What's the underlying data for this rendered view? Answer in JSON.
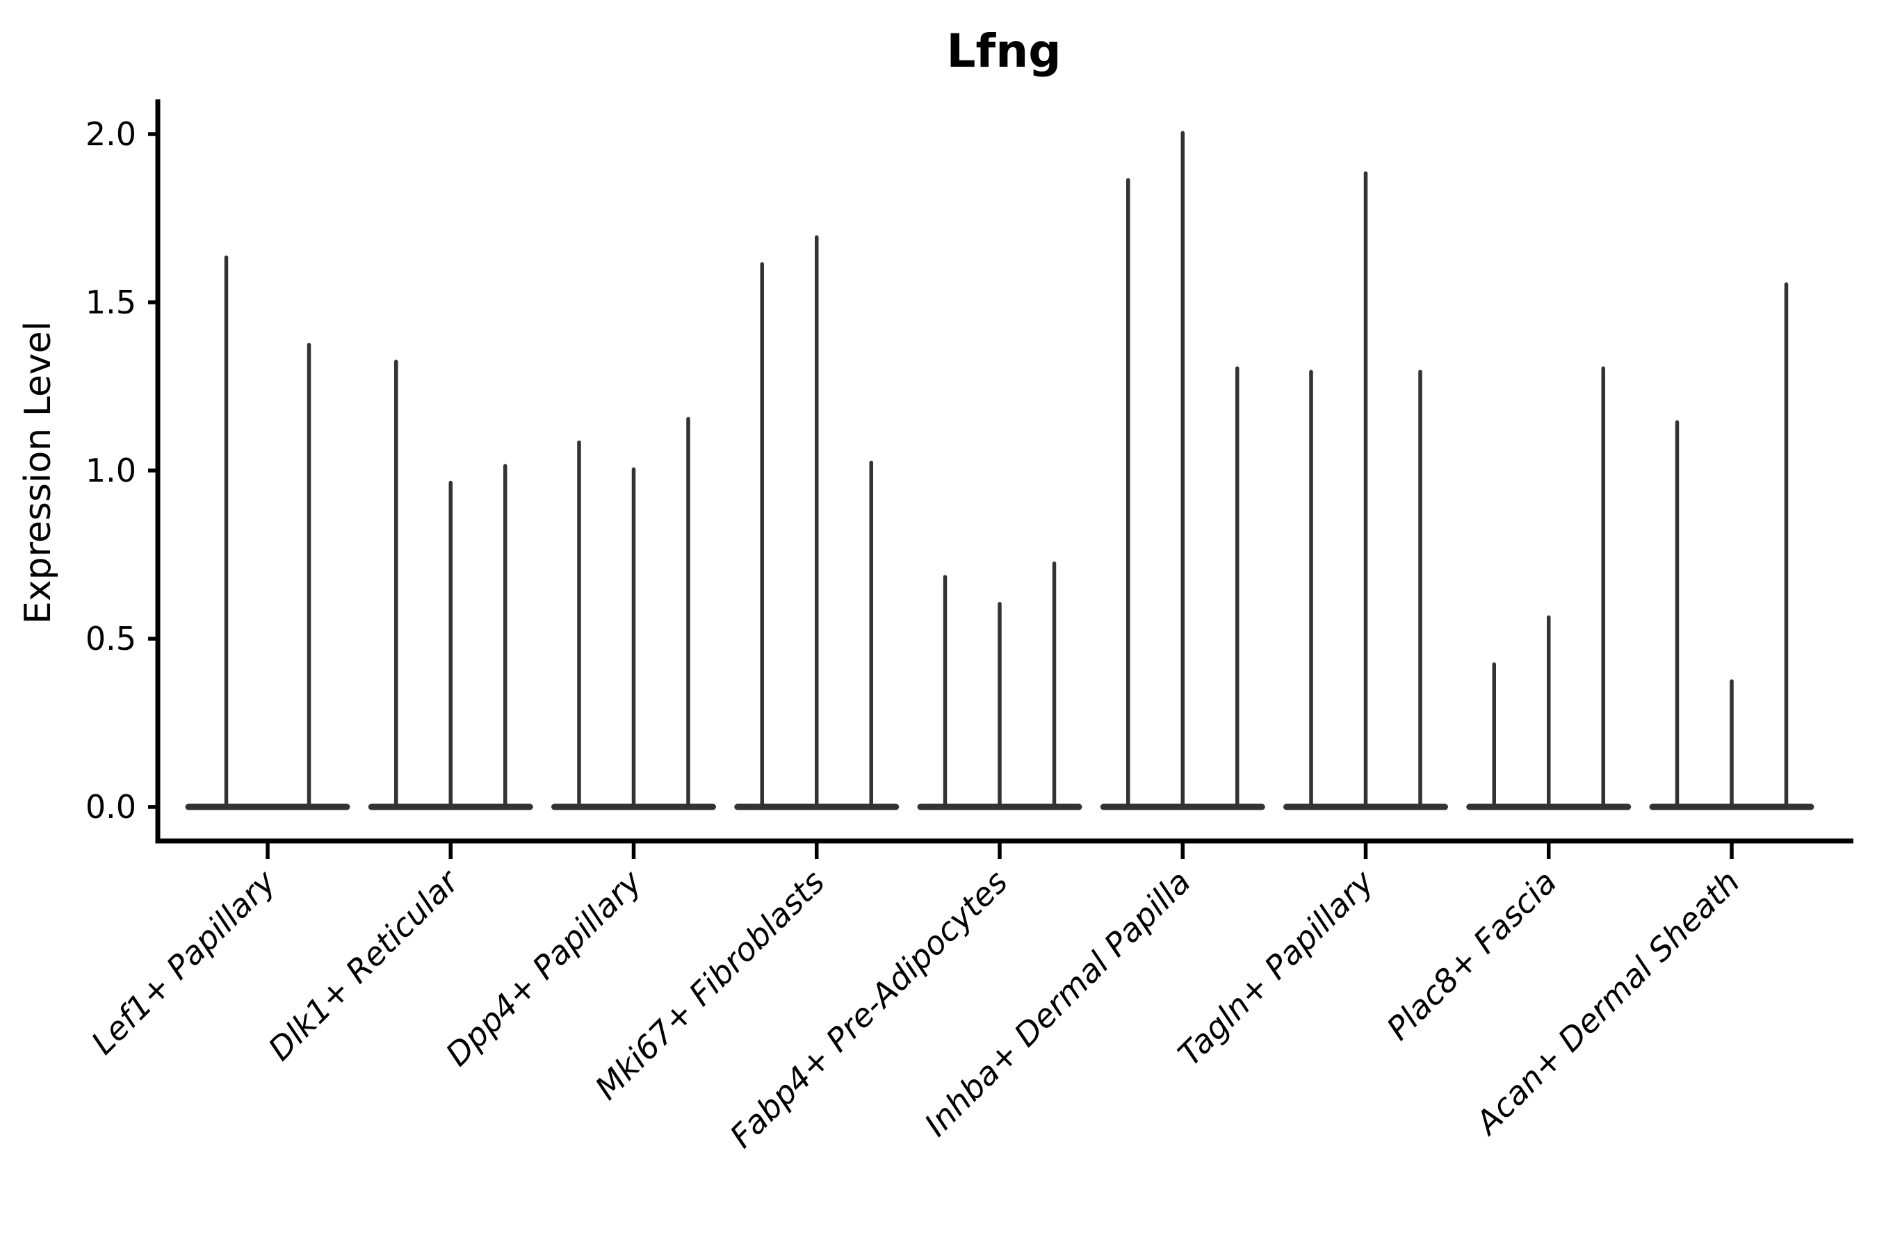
{
  "title": "Lfng",
  "ylabel": "Expression Level",
  "colors": {
    "background": "#ffffff",
    "axis": "#000000",
    "text": "#000000",
    "violin": "#333333"
  },
  "chart_data": {
    "type": "violin",
    "title": "Lfng",
    "xlabel": "",
    "ylabel": "Expression Level",
    "ylim": [
      0.0,
      2.05
    ],
    "yticks": [
      0.0,
      0.5,
      1.0,
      1.5,
      2.0
    ],
    "ytick_labels": [
      "0.0",
      "0.5",
      "1.0",
      "1.5",
      "2.0"
    ],
    "grid": false,
    "legend_position": "none",
    "baseline_value": 0.0,
    "description": "Violin plot of Lfng expression per fibroblast subtype; violins are collapsed flat at 0 with thin needle-like spikes reaching the maximum expression value of each violin.",
    "groups": [
      {
        "label": "Lef1+ Papillary",
        "spike_heights": [
          1.64,
          1.38
        ]
      },
      {
        "label": "Dlk1+ Reticular",
        "spike_heights": [
          1.33,
          0.97,
          1.02
        ]
      },
      {
        "label": "Dpp4+ Papillary",
        "spike_heights": [
          1.09,
          1.01,
          1.16
        ]
      },
      {
        "label": "Mki67+ Fibroblasts",
        "spike_heights": [
          1.62,
          1.7,
          1.03
        ]
      },
      {
        "label": "Fabp4+ Pre-Adipocytes",
        "spike_heights": [
          0.69,
          0.61,
          0.73
        ]
      },
      {
        "label": "Inhba+ Dermal Papilla",
        "spike_heights": [
          1.87,
          2.01,
          1.31
        ]
      },
      {
        "label": "Tagln+ Papillary",
        "spike_heights": [
          1.3,
          1.89,
          1.3
        ]
      },
      {
        "label": "Plac8+ Fascia",
        "spike_heights": [
          0.43,
          0.57,
          1.31
        ]
      },
      {
        "label": "Acan+ Dermal Sheath",
        "spike_heights": [
          1.15,
          0.38,
          1.56
        ]
      }
    ]
  }
}
